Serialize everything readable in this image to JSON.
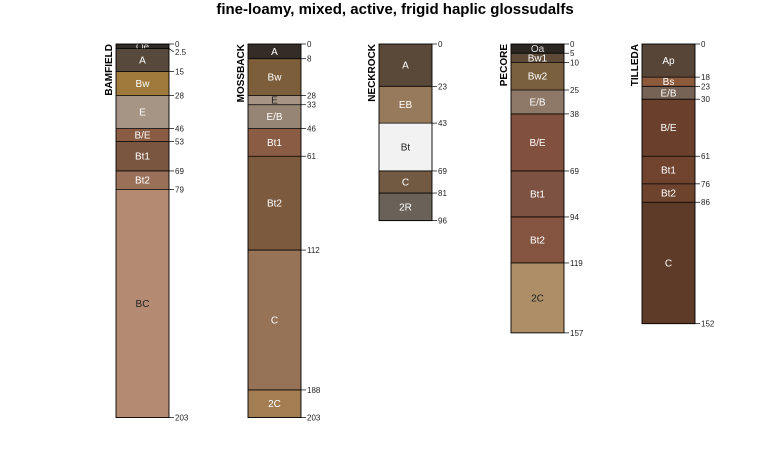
{
  "title": "fine-loamy, mixed, active, frigid haplic glossudalfs",
  "profiles": [
    {
      "name": "BAMFIELD",
      "horizons": [
        {
          "name": "Oe",
          "top": 0,
          "bottom": 2.5,
          "color": "#2e2a26",
          "text": "#dddddd"
        },
        {
          "name": "A",
          "top": 2.5,
          "bottom": 15,
          "color": "#574a3c",
          "text": "#ffffff"
        },
        {
          "name": "Bw",
          "top": 15,
          "bottom": 28,
          "color": "#a07a3c",
          "text": "#ffffff"
        },
        {
          "name": "E",
          "top": 28,
          "bottom": 46,
          "color": "#a69484",
          "text": "#ffffff"
        },
        {
          "name": "B/E",
          "top": 46,
          "bottom": 53,
          "color": "#8a5c44",
          "text": "#ffffff"
        },
        {
          "name": "Bt1",
          "top": 53,
          "bottom": 69,
          "color": "#7a5640",
          "text": "#ffffff"
        },
        {
          "name": "Bt2",
          "top": 69,
          "bottom": 79,
          "color": "#9a7058",
          "text": "#ffffff"
        },
        {
          "name": "BC",
          "top": 79,
          "bottom": 203,
          "color": "#b58a72",
          "text": "#222222"
        }
      ],
      "depth_labels": [
        "0",
        "2.5",
        "15",
        "28",
        "46",
        "53",
        "69",
        "79",
        "203"
      ]
    },
    {
      "name": "MOSSBACK",
      "horizons": [
        {
          "name": "A",
          "top": 0,
          "bottom": 8,
          "color": "#332c27",
          "text": "#ffffff"
        },
        {
          "name": "Bw",
          "top": 8,
          "bottom": 28,
          "color": "#7d5e3a",
          "text": "#ffffff"
        },
        {
          "name": "E",
          "top": 28,
          "bottom": 33,
          "color": "#a89484",
          "text": "#222222"
        },
        {
          "name": "E/B",
          "top": 33,
          "bottom": 46,
          "color": "#968474",
          "text": "#ffffff"
        },
        {
          "name": "Bt1",
          "top": 46,
          "bottom": 61,
          "color": "#8a5c44",
          "text": "#ffffff"
        },
        {
          "name": "Bt2",
          "top": 61,
          "bottom": 112,
          "color": "#7b5a3e",
          "text": "#ffffff"
        },
        {
          "name": "C",
          "top": 112,
          "bottom": 188,
          "color": "#967256",
          "text": "#ffffff"
        },
        {
          "name": "2C",
          "top": 188,
          "bottom": 203,
          "color": "#a27e52",
          "text": "#ffffff"
        }
      ],
      "depth_labels": [
        "0",
        "8",
        "28",
        "33",
        "46",
        "61",
        "112",
        "188",
        "203"
      ]
    },
    {
      "name": "NECKROCK",
      "horizons": [
        {
          "name": "A",
          "top": 0,
          "bottom": 23,
          "color": "#5a4838",
          "text": "#ffffff"
        },
        {
          "name": "EB",
          "top": 23,
          "bottom": 43,
          "color": "#977a5c",
          "text": "#ffffff"
        },
        {
          "name": "Bt",
          "top": 43,
          "bottom": 69,
          "color": "#f2f2f2",
          "text": "#222222"
        },
        {
          "name": "C",
          "top": 69,
          "bottom": 81,
          "color": "#725a42",
          "text": "#ffffff"
        },
        {
          "name": "2R",
          "top": 81,
          "bottom": 96,
          "color": "#6a6258",
          "text": "#ffffff"
        }
      ],
      "depth_labels": [
        "0",
        "23",
        "43",
        "69",
        "81",
        "96"
      ]
    },
    {
      "name": "PECORE",
      "horizons": [
        {
          "name": "Oa",
          "top": 0,
          "bottom": 5,
          "color": "#2b2622",
          "text": "#dddddd"
        },
        {
          "name": "Bw1",
          "top": 5,
          "bottom": 10,
          "color": "#5e4a36",
          "text": "#ffffff"
        },
        {
          "name": "Bw2",
          "top": 10,
          "bottom": 25,
          "color": "#7a603e",
          "text": "#ffffff"
        },
        {
          "name": "E/B",
          "top": 25,
          "bottom": 38,
          "color": "#8e7868",
          "text": "#ffffff"
        },
        {
          "name": "B/E",
          "top": 38,
          "bottom": 69,
          "color": "#82503e",
          "text": "#ffffff"
        },
        {
          "name": "Bt1",
          "top": 69,
          "bottom": 94,
          "color": "#7d5242",
          "text": "#ffffff"
        },
        {
          "name": "Bt2",
          "top": 94,
          "bottom": 119,
          "color": "#855440",
          "text": "#ffffff"
        },
        {
          "name": "2C",
          "top": 119,
          "bottom": 157,
          "color": "#ae8e66",
          "text": "#222222"
        }
      ],
      "depth_labels": [
        "0",
        "5",
        "10",
        "25",
        "38",
        "69",
        "94",
        "119",
        "157"
      ]
    },
    {
      "name": "TILLEDA",
      "horizons": [
        {
          "name": "Ap",
          "top": 0,
          "bottom": 18,
          "color": "#574638",
          "text": "#ffffff"
        },
        {
          "name": "Bs",
          "top": 18,
          "bottom": 23,
          "color": "#8e5a3c",
          "text": "#ffffff"
        },
        {
          "name": "E/B",
          "top": 23,
          "bottom": 30,
          "color": "#776356",
          "text": "#ffffff"
        },
        {
          "name": "B/E",
          "top": 30,
          "bottom": 61,
          "color": "#6a402c",
          "text": "#ffffff"
        },
        {
          "name": "Bt1",
          "top": 61,
          "bottom": 76,
          "color": "#6f432e",
          "text": "#ffffff"
        },
        {
          "name": "Bt2",
          "top": 76,
          "bottom": 86,
          "color": "#6d432e",
          "text": "#ffffff"
        },
        {
          "name": "C",
          "top": 86,
          "bottom": 152,
          "color": "#5e3a28",
          "text": "#ffffff"
        }
      ],
      "depth_labels": [
        "0",
        "18",
        "23",
        "30",
        "61",
        "76",
        "86",
        "152"
      ]
    }
  ]
}
